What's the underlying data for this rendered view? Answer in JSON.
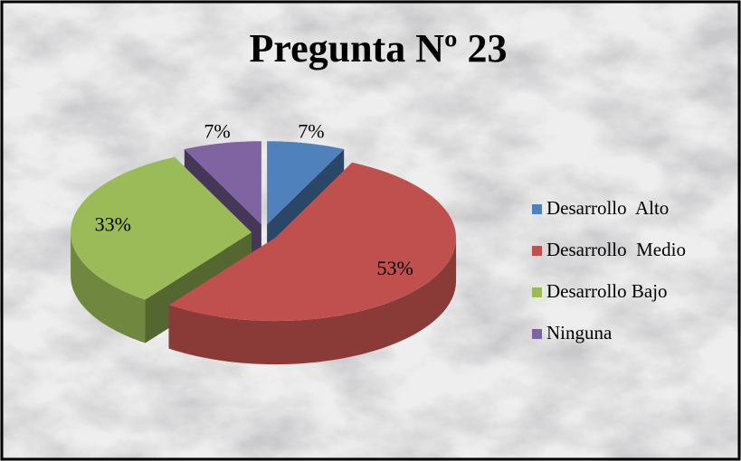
{
  "chart_data": {
    "type": "pie3d",
    "title": "Pregunta Nº 23",
    "categories": [
      "Desarrollo  Alto",
      "Desarrollo  Medio",
      "Desarrollo Bajo",
      "Ninguna"
    ],
    "values": [
      7,
      53,
      33,
      7
    ],
    "value_labels": [
      "7%",
      "53%",
      "33%",
      "7%"
    ],
    "colors": [
      "#4f81bd",
      "#c0504d",
      "#9bbb59",
      "#8064a2"
    ],
    "legend": "right"
  }
}
